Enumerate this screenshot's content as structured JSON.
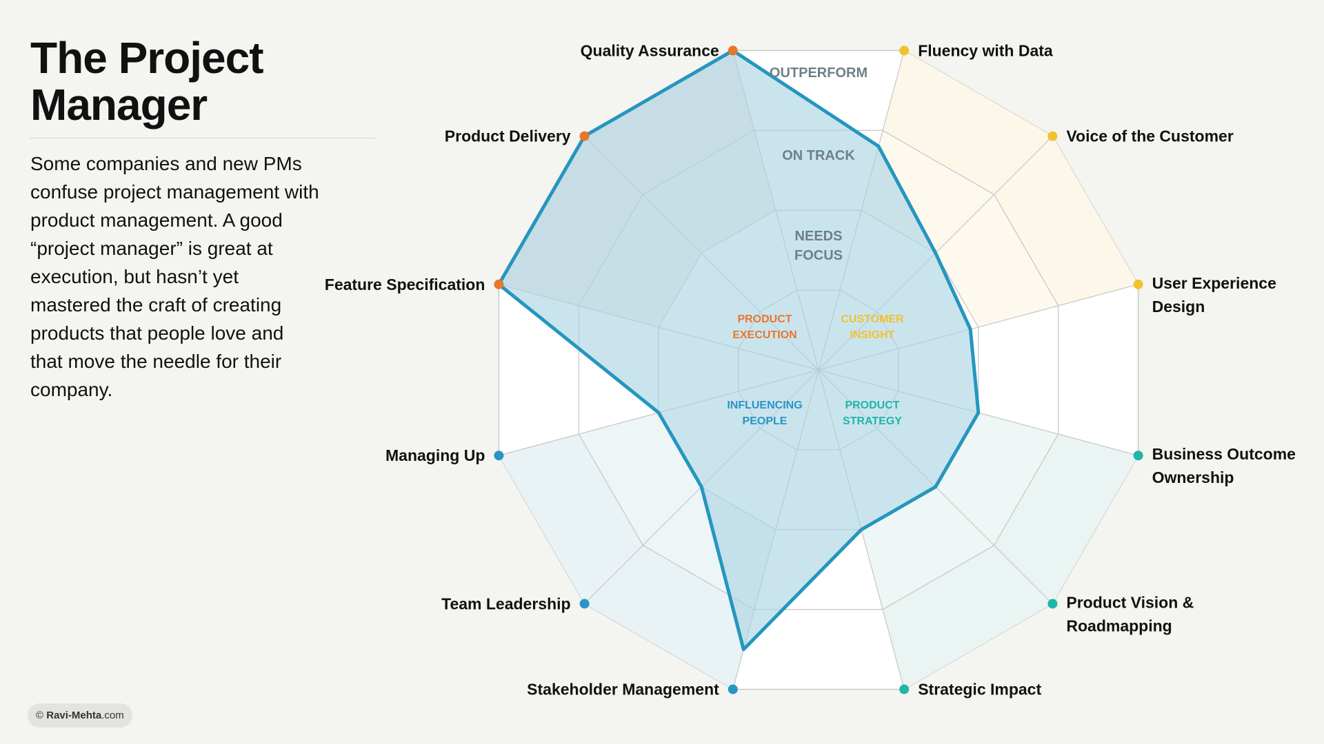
{
  "title": "The Project Manager",
  "description": "Some companies and new PMs confuse project management with product management. A good “project manager” is great at execution, but hasn’t yet mastered the craft of creating products that people love and that move the needle for their company.",
  "credit": {
    "prefix": "© ",
    "name": "Ravi-Mehta",
    "suffix": ".com"
  },
  "colors": {
    "series_stroke": "#2596be",
    "series_fill": "#a9d3e4",
    "execution": "#e8762b",
    "insight": "#f2c12e",
    "strategy": "#1fb5a8",
    "influence": "#2a94c4",
    "grid": "#c9c9c9",
    "ring_label": "#6e7f88"
  },
  "chart_data": {
    "type": "radar",
    "title": "",
    "rings": [
      "NEEDS FOCUS",
      "ON TRACK",
      "OUTPERFORM"
    ],
    "r_range": [
      0,
      4
    ],
    "axes": [
      {
        "label": "Quality Assurance",
        "group": "execution"
      },
      {
        "label": "Fluency with Data",
        "group": "insight"
      },
      {
        "label": "Voice of the Customer",
        "group": "insight"
      },
      {
        "label": "User Experience Design",
        "group": "insight"
      },
      {
        "label": "Business Outcome Ownership",
        "group": "strategy"
      },
      {
        "label": "Product Vision & Roadmapping",
        "group": "strategy"
      },
      {
        "label": "Strategic Impact",
        "group": "strategy"
      },
      {
        "label": "Stakeholder Management",
        "group": "influence"
      },
      {
        "label": "Team Leadership",
        "group": "influence"
      },
      {
        "label": "Managing Up",
        "group": "influence"
      },
      {
        "label": "Feature Specification",
        "group": "execution"
      },
      {
        "label": "Product Delivery",
        "group": "execution"
      }
    ],
    "groups": [
      {
        "id": "execution",
        "label": "PRODUCT EXECUTION"
      },
      {
        "id": "insight",
        "label": "CUSTOMER INSIGHT"
      },
      {
        "id": "strategy",
        "label": "PRODUCT STRATEGY"
      },
      {
        "id": "influence",
        "label": "INFLUENCING PEOPLE"
      }
    ],
    "series": [
      {
        "values": [
          4,
          2.8,
          2.0,
          1.9,
          2.0,
          2.0,
          2.0,
          3.5,
          2.0,
          2.0,
          4.0,
          4.0
        ]
      }
    ]
  }
}
